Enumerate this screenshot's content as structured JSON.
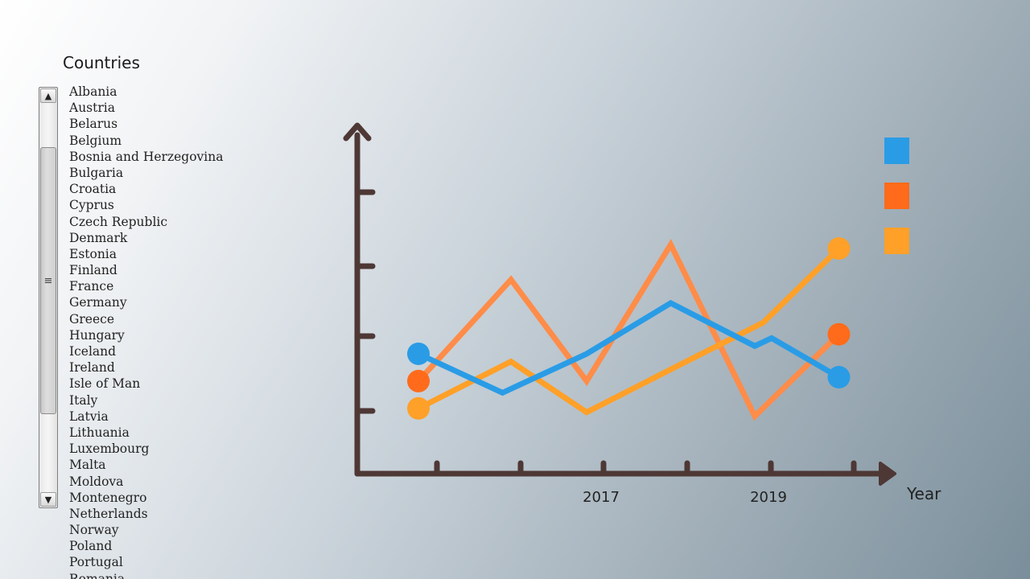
{
  "panel": {
    "title": "Countries",
    "countries": [
      "Albania",
      "Austria",
      "Belarus",
      "Belgium",
      "Bosnia and Herzegovina",
      "Bulgaria",
      "Croatia",
      "Cyprus",
      "Czech Republic",
      "Denmark",
      "Estonia",
      "Finland",
      "France",
      "Germany",
      "Greece",
      "Hungary",
      "Iceland",
      "Ireland",
      "Isle of Man",
      "Italy",
      "Latvia",
      "Lithuania",
      "Luxembourg",
      "Malta",
      "Moldova",
      "Montenegro",
      "Netherlands",
      "Norway",
      "Poland",
      "Portugal",
      "Romania"
    ],
    "scrollbar": {
      "up_icon": "triangle-up-icon",
      "down_icon": "triangle-down-icon",
      "grip_icon": "grip-lines-icon"
    }
  },
  "chart_data": {
    "type": "line",
    "xlabel": "Year",
    "ylabel": "",
    "x_tick_labels": [
      "",
      "",
      "2017",
      "",
      "2019",
      ""
    ],
    "grid": false,
    "legend_position": "top-right",
    "colors": {
      "axis": "#4e3835",
      "blue": "#2a9ce6",
      "orange_red": "#ff6b1a",
      "orange": "#ffa028",
      "orange_light": "#ff8c48"
    },
    "series": [
      {
        "color": "#2a9ce6",
        "values": [
          {
            "x": 0.0,
            "y": 1.65
          },
          {
            "x": 1.0,
            "y": 1.15
          },
          {
            "x": 2.0,
            "y": 1.65
          },
          {
            "x": 3.0,
            "y": 2.3
          },
          {
            "x": 4.0,
            "y": 1.75
          },
          {
            "x": 4.2,
            "y": 1.85
          },
          {
            "x": 5.0,
            "y": 1.35
          }
        ]
      },
      {
        "color": "#ff6b1a",
        "values": [
          {
            "x": 0.0,
            "y": 1.3
          },
          {
            "x": 1.1,
            "y": 2.6
          },
          {
            "x": 2.0,
            "y": 1.3
          },
          {
            "x": 3.0,
            "y": 3.05
          },
          {
            "x": 4.0,
            "y": 0.85
          },
          {
            "x": 5.0,
            "y": 1.9
          }
        ]
      },
      {
        "color": "#ffa028",
        "values": [
          {
            "x": 0.0,
            "y": 0.95
          },
          {
            "x": 1.1,
            "y": 1.55
          },
          {
            "x": 2.0,
            "y": 0.9
          },
          {
            "x": 3.0,
            "y": 1.45
          },
          {
            "x": 4.1,
            "y": 2.05
          },
          {
            "x": 5.0,
            "y": 3.0
          }
        ]
      }
    ],
    "legend_colors": [
      "#2a9ce6",
      "#ff6b1a",
      "#ffa028"
    ]
  }
}
